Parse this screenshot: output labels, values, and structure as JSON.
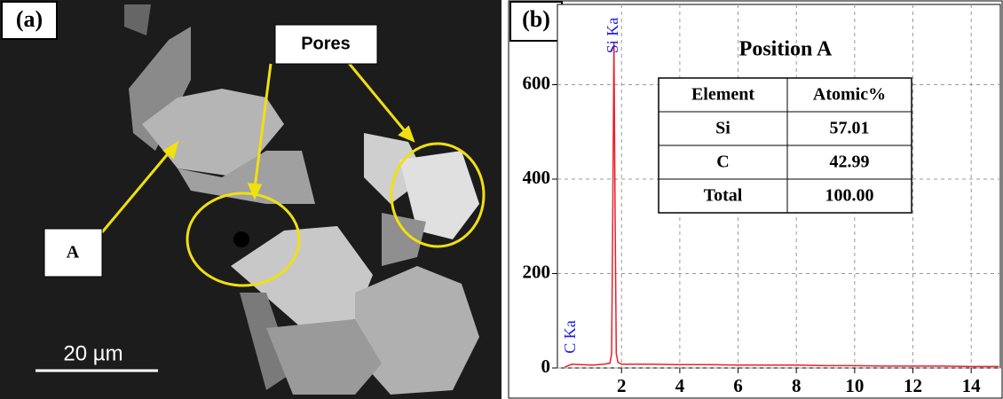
{
  "panel_a": {
    "label": "(a)",
    "pores_label": "Pores",
    "point_label": "A",
    "scale_bar": "20 µm"
  },
  "panel_b": {
    "label": "(b)"
  },
  "chart_data": {
    "type": "line",
    "title": "Position A",
    "color": "#e8202a",
    "x": [
      0.05,
      0.3,
      0.6,
      1.0,
      1.4,
      1.6,
      1.66,
      1.7,
      1.74,
      1.78,
      1.82,
      1.88,
      2.0,
      3.0,
      4.0,
      5.0,
      6.0,
      7.0,
      8.0,
      9.0,
      10.0,
      11.0,
      12.0,
      13.0,
      14.0,
      14.95
    ],
    "values": [
      2,
      8,
      7,
      6,
      8,
      10,
      30,
      330,
      690,
      320,
      30,
      12,
      8,
      8,
      7,
      7,
      6,
      6,
      6,
      5,
      5,
      4,
      4,
      4,
      3,
      3
    ],
    "xlim": [
      -0.2,
      15
    ],
    "ylim": [
      0,
      770
    ],
    "xticks": [
      2,
      4,
      6,
      8,
      10,
      12,
      14
    ],
    "yticks": [
      0,
      200,
      400,
      600
    ],
    "grid": true,
    "peak_labels": [
      {
        "text": "C Ka",
        "x": 0.28
      },
      {
        "text": "Si Ka",
        "x": 1.74
      }
    ],
    "table": {
      "columns": [
        "Element",
        "Atomic%"
      ],
      "rows": [
        [
          "Si",
          "57.01"
        ],
        [
          "C",
          "42.99"
        ],
        [
          "Total",
          "100.00"
        ]
      ]
    }
  }
}
